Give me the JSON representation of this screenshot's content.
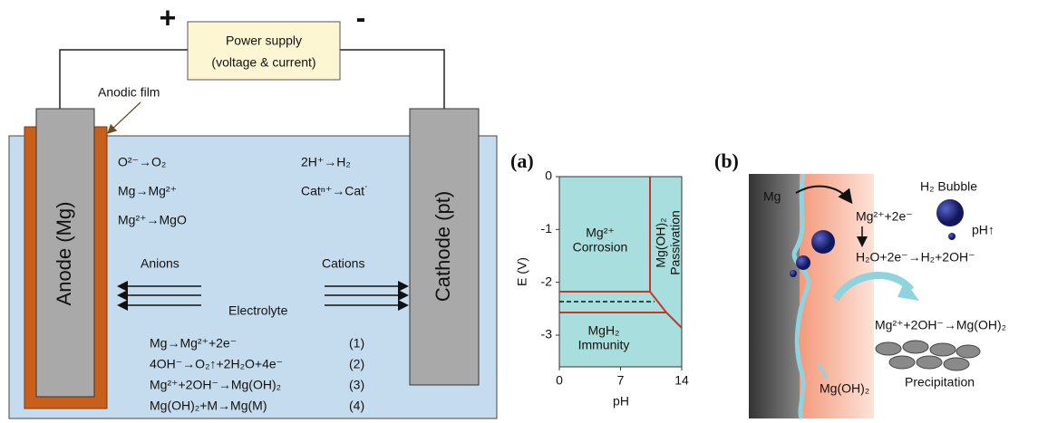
{
  "cell": {
    "plus": "+",
    "minus": "-",
    "power_supply": [
      "Power supply",
      "(voltage & current)"
    ],
    "anodic_film": "Anodic film",
    "anode": "Anode (Mg)",
    "cathode": "Cathode (pt)",
    "anode_reactions": [
      "O²⁻→O₂",
      "Mg→Mg²⁺",
      "Mg²⁺→MgO"
    ],
    "cathode_reactions": [
      "2H⁺→H₂",
      "Catⁿ⁺→Cat˙"
    ],
    "anions": "Anions",
    "cations": "Cations",
    "electrolyte": "Electrolyte",
    "equations": [
      [
        "Mg→Mg²⁺+2e⁻",
        "(1)"
      ],
      [
        "4OH⁻→O₂↑+2H₂O+4e⁻",
        "(2)"
      ],
      [
        "Mg²⁺+2OH⁻→Mg(OH)₂",
        "(3)"
      ],
      [
        "Mg(OH)₂+M→Mg(M)",
        "(4)"
      ]
    ]
  },
  "panel_a": {
    "label": "(a)",
    "ylabel": "E (V)",
    "xlabel": "pH",
    "xlim": [
      0,
      14
    ],
    "ylim": [
      -3.6,
      0
    ],
    "xticks": [
      0,
      7,
      14
    ],
    "yticks": [
      0,
      -1,
      -2,
      -3
    ],
    "regions": {
      "corrosion": [
        "Mg²⁺",
        "Corrosion"
      ],
      "immunity": [
        "MgH₂",
        "Immunity"
      ],
      "passivation": [
        "Mg(OH)₂",
        "Passivation"
      ]
    }
  },
  "panel_b": {
    "label": "(b)",
    "mg": "Mg",
    "bubble": "H₂ Bubble",
    "ionization": "Mg²⁺+2e⁻",
    "ph": "pH↑",
    "reduction": "H₂O+2e⁻→H₂+2OH⁻",
    "precip_eq": "Mg²⁺+2OH⁻→Mg(OH)₂",
    "precipitation": "Precipitation",
    "hydroxide": "Mg(OH)₂"
  }
}
